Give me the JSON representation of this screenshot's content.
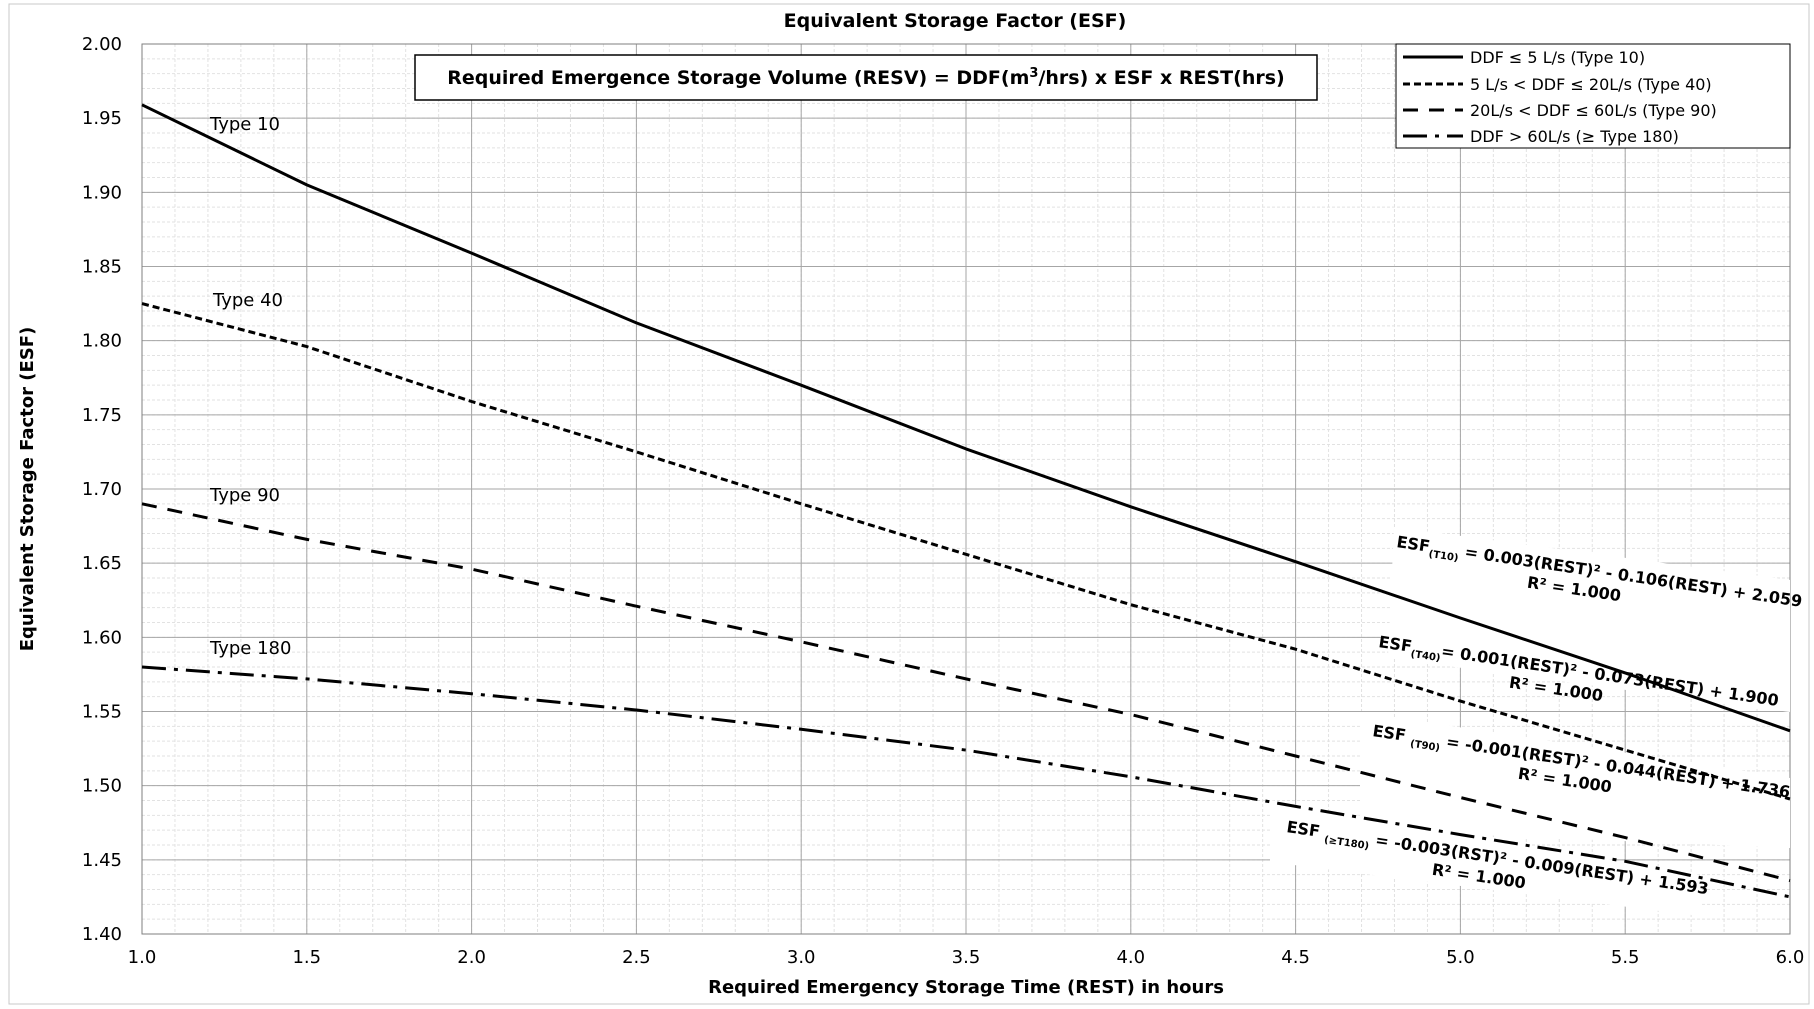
{
  "chart_data": {
    "type": "line",
    "title": "Equivalent Storage Factor (ESF)",
    "xlabel": "Required Emergency Storage Time (REST) in hours",
    "ylabel": "Equivalent Storage Factor (ESF)",
    "xlim": [
      1.0,
      6.0
    ],
    "ylim": [
      1.4,
      2.0
    ],
    "x_ticks": [
      "1.0",
      "1.5",
      "2.0",
      "2.5",
      "3.0",
      "3.5",
      "4.0",
      "4.5",
      "5.0",
      "5.5",
      "6.0"
    ],
    "y_ticks": [
      "1.40",
      "1.45",
      "1.50",
      "1.55",
      "1.60",
      "1.65",
      "1.70",
      "1.75",
      "1.80",
      "1.85",
      "1.90",
      "1.95",
      "2.00"
    ],
    "grid": true,
    "legend_position": "top-right",
    "formula_box": {
      "prefix": "Required Emergence Storage Volume (RESV) = DDF(m",
      "sup": "3",
      "suffix": "/hrs) x ESF x REST(hrs)"
    },
    "series": [
      {
        "name": "DDF ≤ 5 L/s (Type 10)",
        "label": "Type 10",
        "style": "solid",
        "x": [
          1.0,
          1.5,
          2.0,
          2.5,
          3.0,
          3.5,
          4.0,
          4.5,
          5.0,
          5.5,
          6.0
        ],
        "y": [
          1.959,
          1.905,
          1.859,
          1.812,
          1.77,
          1.727,
          1.688,
          1.651,
          1.613,
          1.576,
          1.537
        ]
      },
      {
        "name": "5 L/s < DDF ≤ 20L/s (Type 40)",
        "label": "Type 40",
        "style": "dotted",
        "x": [
          1.0,
          1.5,
          2.0,
          2.5,
          3.0,
          3.5,
          4.0,
          4.5,
          5.0,
          5.5,
          6.0
        ],
        "y": [
          1.825,
          1.796,
          1.759,
          1.725,
          1.69,
          1.656,
          1.622,
          1.592,
          1.557,
          1.524,
          1.491
        ]
      },
      {
        "name": "20L/s < DDF ≤ 60L/s (Type 90)",
        "label": "Type 90",
        "style": "dashed",
        "x": [
          1.0,
          1.5,
          2.0,
          2.5,
          3.0,
          3.5,
          4.0,
          4.5,
          5.0,
          5.5,
          6.0
        ],
        "y": [
          1.69,
          1.666,
          1.646,
          1.621,
          1.597,
          1.572,
          1.548,
          1.52,
          1.492,
          1.465,
          1.436
        ]
      },
      {
        "name": "DDF > 60L/s (≥ Type 180)",
        "label": "Type 180",
        "style": "dash-dot",
        "x": [
          1.0,
          1.5,
          2.0,
          2.5,
          3.0,
          3.5,
          4.0,
          4.5,
          5.0,
          5.5,
          6.0
        ],
        "y": [
          1.58,
          1.572,
          1.562,
          1.551,
          1.538,
          1.524,
          1.506,
          1.486,
          1.467,
          1.449,
          1.425
        ]
      }
    ],
    "equations": [
      {
        "pre": "ESF",
        "sub": "(T10)",
        "post": " = 0.003(REST)² - 0.106(REST) + 2.059",
        "r2": "R² = 1.000"
      },
      {
        "pre": "ESF",
        "sub": "(T40)",
        "post": "= 0.001(REST)² - 0.073(REST) + 1.900",
        "r2": "R² = 1.000"
      },
      {
        "pre": "ESF ",
        "sub": "(T90)",
        "post": " = -0.001(REST)² - 0.044(REST) + 1.736",
        "r2": "R² = 1.000"
      },
      {
        "pre": "ESF ",
        "sub": "(≥T180)",
        "post": " = -0.003(RST)² - 0.009(REST) + 1.593",
        "r2": "R² = 1.000"
      }
    ]
  }
}
